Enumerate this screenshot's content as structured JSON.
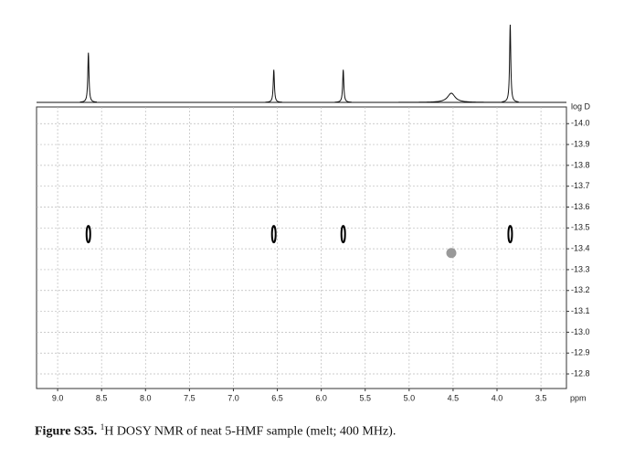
{
  "chart_data": {
    "type": "dosy",
    "xlabel": "ppm",
    "ylabel": "log D",
    "xlim": [
      9.24,
      3.21
    ],
    "xticks": [
      {
        "value": 9,
        "label": "9.0"
      },
      8.5,
      {
        "value": 8,
        "label": "8.0"
      },
      7.5,
      {
        "value": 7,
        "label": "7.0"
      },
      6.5,
      {
        "value": 6,
        "label": "6.0"
      },
      5.5,
      {
        "value": 5,
        "label": "5.0"
      },
      4.5,
      {
        "value": 4,
        "label": "4.0"
      },
      3.5
    ],
    "ylim": [
      -14.08,
      -12.73
    ],
    "yticks": [
      {
        "value": -14,
        "label": "-14.0"
      },
      -13.9,
      -13.8,
      -13.7,
      -13.6,
      -13.5,
      -13.4,
      -13.3,
      -13.2,
      -13.1,
      {
        "value": -13,
        "label": "-13.0"
      },
      -12.9,
      -12.8
    ],
    "grid": true,
    "projection": {
      "ppm": [
        8.65,
        6.54,
        5.75,
        4.52,
        3.85
      ],
      "intensities": [
        64,
        42,
        42,
        12,
        100
      ],
      "widths": [
        0.008,
        0.008,
        0.008,
        0.05,
        0.008
      ]
    },
    "cross_peaks": {
      "x": [
        8.65,
        6.54,
        5.75,
        4.52,
        3.85
      ],
      "values": [
        -13.47,
        -13.47,
        -13.47,
        -13.38,
        -13.47
      ],
      "colors": [
        "#000000",
        "#000000",
        "#000000",
        "#999999",
        "#000000"
      ],
      "shapes": [
        "ellipse",
        "ellipse",
        "ellipse",
        "circle",
        "ellipse"
      ]
    }
  },
  "caption": {
    "label": "Figure S35.",
    "superscript": "1",
    "text": "H DOSY NMR of neat 5-HMF sample (melt; 400 MHz)."
  }
}
